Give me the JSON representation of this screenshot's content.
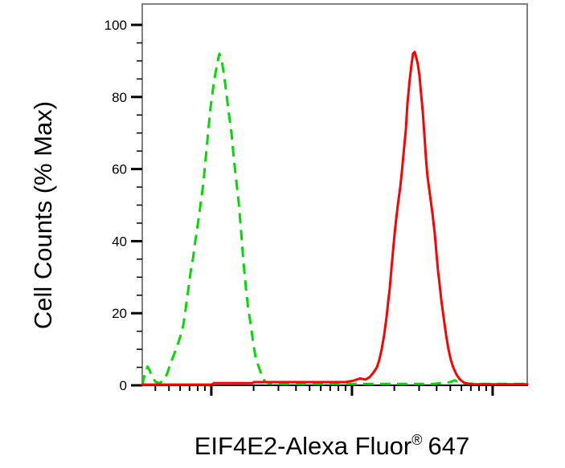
{
  "figure": {
    "ylabel": "Cell Counts (% Max)",
    "xlabel_main": "EIF4E2-Alexa Fluor",
    "xlabel_sup": "®",
    "xlabel_suffix": "647"
  },
  "colors": {
    "green_curve": "#00DB00",
    "red_curve": "#FF0000",
    "frame": "#808080",
    "ticks": "#000000",
    "text": "#000000",
    "background": "#FFFFFF"
  },
  "chart_data": {
    "type": "line",
    "title": "",
    "xlabel": "EIF4E2-Alexa Fluor® 647",
    "ylabel": "Cell Counts (% Max)",
    "legend": "none",
    "grid": false,
    "x_axis": {
      "scale": "log10",
      "range_log10": [
        0.509,
        3.246
      ],
      "decade_ticks_log10": [
        1,
        2,
        3
      ],
      "minor_ticks": "log-subdivisions 2-9",
      "tick_labels": "none"
    },
    "y_axis": {
      "range": [
        0,
        100
      ],
      "major_ticks": [
        0,
        20,
        40,
        60,
        80,
        100
      ],
      "major_tick_labels": [
        "0",
        "20",
        "40",
        "60",
        "80",
        "100"
      ],
      "minor_tick_step": 5
    },
    "series": [
      {
        "name": "green_dashed",
        "style": "dashed",
        "color": "#00DB00",
        "points": [
          [
            0.509,
            0
          ],
          [
            0.515,
            1.2
          ],
          [
            0.53,
            3.6
          ],
          [
            0.546,
            5.2
          ],
          [
            0.56,
            4.3
          ],
          [
            0.583,
            2.0
          ],
          [
            0.606,
            0.9
          ],
          [
            0.634,
            0.6
          ],
          [
            0.663,
            1.6
          ],
          [
            0.686,
            3.2
          ],
          [
            0.709,
            6.0
          ],
          [
            0.731,
            8.2
          ],
          [
            0.754,
            10.5
          ],
          [
            0.777,
            13.2
          ],
          [
            0.8,
            16.5
          ],
          [
            0.817,
            21
          ],
          [
            0.834,
            26
          ],
          [
            0.851,
            31
          ],
          [
            0.869,
            35
          ],
          [
            0.886,
            40
          ],
          [
            0.909,
            46
          ],
          [
            0.926,
            51
          ],
          [
            0.943,
            56
          ],
          [
            0.96,
            63
          ],
          [
            0.977,
            70
          ],
          [
            0.994,
            77
          ],
          [
            1.011,
            82
          ],
          [
            1.029,
            86.5
          ],
          [
            1.046,
            90
          ],
          [
            1.057,
            92
          ],
          [
            1.074,
            90
          ],
          [
            1.091,
            86
          ],
          [
            1.109,
            80.5
          ],
          [
            1.126,
            75
          ],
          [
            1.143,
            70
          ],
          [
            1.16,
            63
          ],
          [
            1.177,
            57
          ],
          [
            1.194,
            51
          ],
          [
            1.211,
            43
          ],
          [
            1.229,
            34
          ],
          [
            1.246,
            27
          ],
          [
            1.263,
            21
          ],
          [
            1.28,
            17
          ],
          [
            1.297,
            12
          ],
          [
            1.314,
            8
          ],
          [
            1.331,
            5.8
          ],
          [
            1.349,
            3.8
          ],
          [
            1.366,
            2.0
          ],
          [
            1.383,
            1.0
          ],
          [
            1.411,
            0.5
          ],
          [
            1.497,
            0.4
          ],
          [
            1.783,
            0.4
          ],
          [
            2.069,
            0.4
          ],
          [
            2.354,
            0.4
          ],
          [
            2.583,
            0.4
          ],
          [
            2.697,
            0.9
          ],
          [
            2.731,
            1.4
          ],
          [
            2.766,
            0.6
          ],
          [
            2.869,
            0.4
          ],
          [
            3.04,
            0.4
          ],
          [
            3.246,
            0.4
          ]
        ]
      },
      {
        "name": "red_solid",
        "style": "solid",
        "color": "#FF0000",
        "points": [
          [
            0.509,
            0.2
          ],
          [
            0.64,
            0.2
          ],
          [
            0.869,
            0.2
          ],
          [
            1.006,
            0.2
          ],
          [
            1.017,
            0.6
          ],
          [
            1.211,
            0.6
          ],
          [
            1.291,
            0.6
          ],
          [
            1.303,
            0.9
          ],
          [
            1.554,
            0.9
          ],
          [
            1.783,
            0.9
          ],
          [
            1.954,
            0.9
          ],
          [
            2.011,
            1.3
          ],
          [
            2.057,
            1.9
          ],
          [
            2.097,
            1.6
          ],
          [
            2.126,
            2.3
          ],
          [
            2.154,
            3.6
          ],
          [
            2.177,
            5
          ],
          [
            2.194,
            7
          ],
          [
            2.211,
            10
          ],
          [
            2.229,
            14
          ],
          [
            2.246,
            19
          ],
          [
            2.257,
            23
          ],
          [
            2.269,
            27
          ],
          [
            2.28,
            32
          ],
          [
            2.291,
            37
          ],
          [
            2.303,
            42
          ],
          [
            2.314,
            46
          ],
          [
            2.326,
            50
          ],
          [
            2.343,
            55
          ],
          [
            2.354,
            59
          ],
          [
            2.366,
            64
          ],
          [
            2.383,
            71
          ],
          [
            2.394,
            78
          ],
          [
            2.411,
            85
          ],
          [
            2.423,
            89
          ],
          [
            2.434,
            92
          ],
          [
            2.446,
            92.5
          ],
          [
            2.457,
            91
          ],
          [
            2.469,
            89
          ],
          [
            2.48,
            86
          ],
          [
            2.491,
            81
          ],
          [
            2.503,
            76
          ],
          [
            2.514,
            70
          ],
          [
            2.526,
            63
          ],
          [
            2.537,
            58
          ],
          [
            2.554,
            53
          ],
          [
            2.571,
            48
          ],
          [
            2.589,
            42
          ],
          [
            2.6,
            37
          ],
          [
            2.611,
            32
          ],
          [
            2.623,
            28
          ],
          [
            2.634,
            24
          ],
          [
            2.651,
            19
          ],
          [
            2.669,
            14
          ],
          [
            2.686,
            10
          ],
          [
            2.703,
            7
          ],
          [
            2.72,
            5
          ],
          [
            2.743,
            3
          ],
          [
            2.766,
            1.7
          ],
          [
            2.794,
            0.8
          ],
          [
            2.829,
            0.4
          ],
          [
            2.869,
            0.3
          ],
          [
            2.983,
            0.3
          ],
          [
            3.154,
            0.3
          ],
          [
            3.246,
            0.3
          ]
        ]
      }
    ]
  }
}
